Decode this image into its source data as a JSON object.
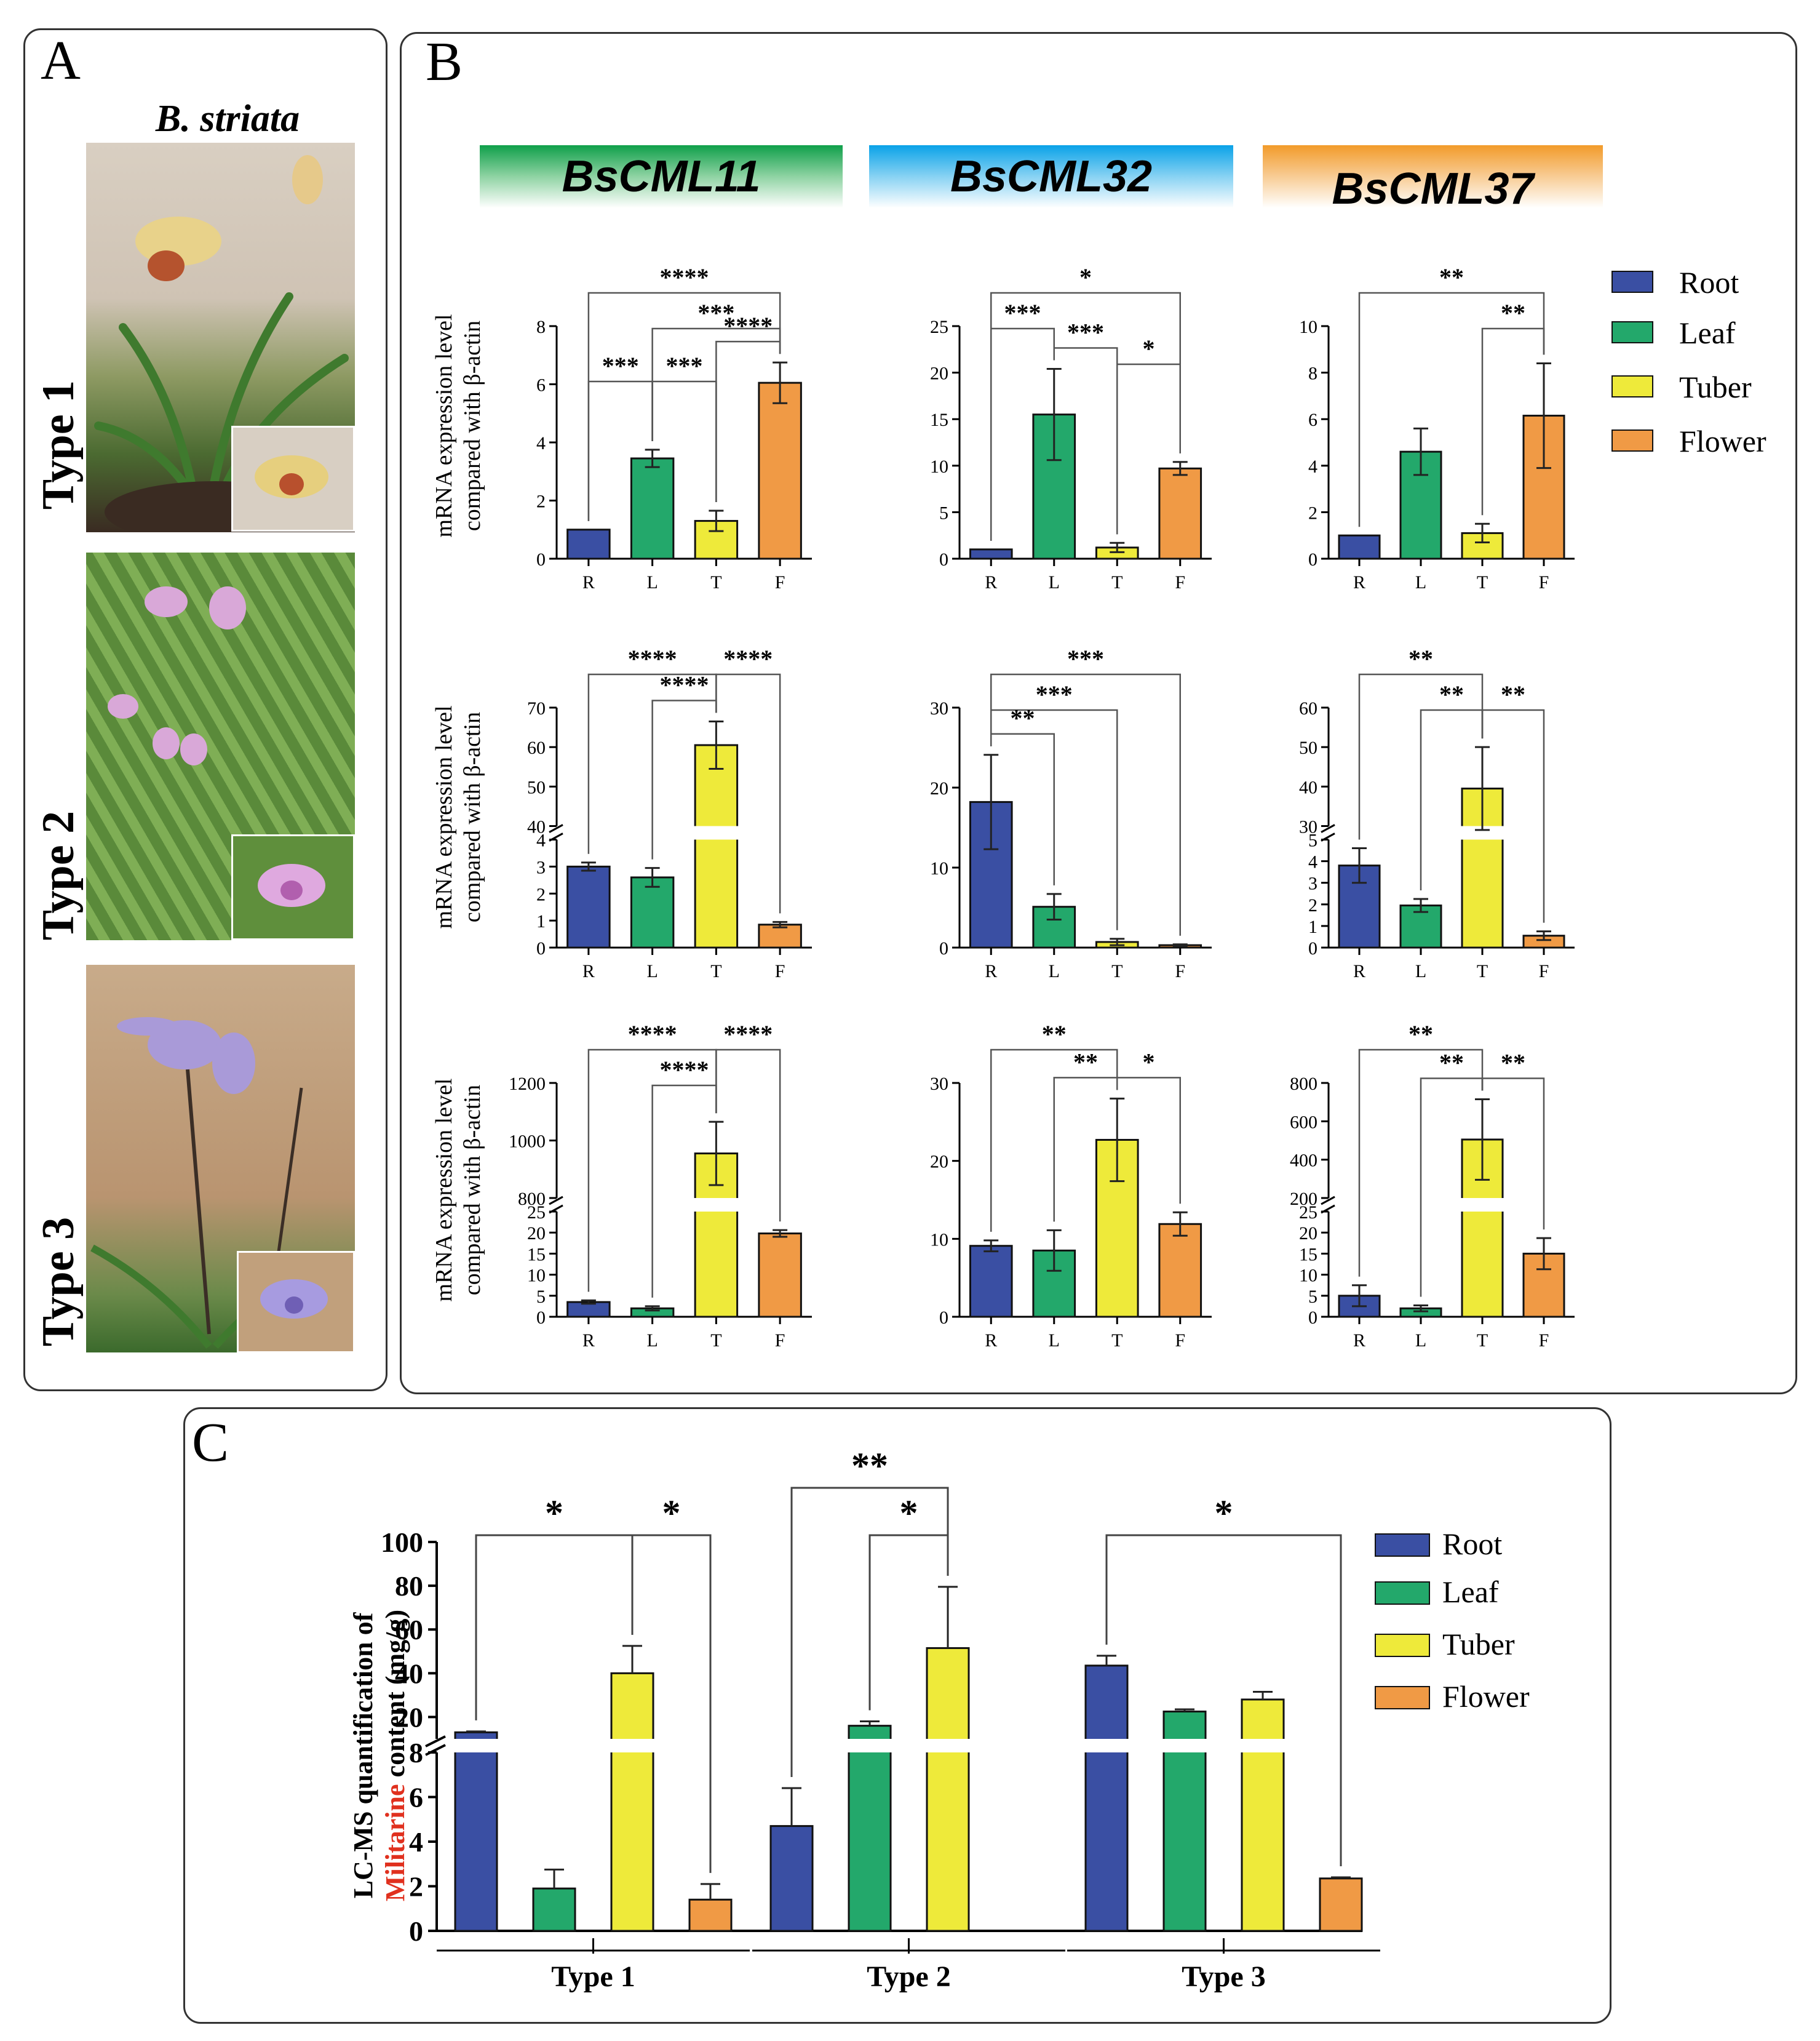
{
  "panels": {
    "a": "A",
    "b": "B",
    "c": "C"
  },
  "species": "B. striata",
  "types": [
    "Type 1",
    "Type 2",
    "Type 3"
  ],
  "genes": [
    {
      "name": "BsCML11",
      "color": "#1aaa55"
    },
    {
      "name": "BsCML32",
      "color": "#1ea7e8"
    },
    {
      "name": "BsCML37",
      "color": "#f39a2c"
    }
  ],
  "ylabel_b": [
    "mRNA expression level",
    "compared with β-actin"
  ],
  "legend": [
    {
      "label": "Root",
      "color": "#3a4fa3"
    },
    {
      "label": "Leaf",
      "color": "#23a86b"
    },
    {
      "label": "Tuber",
      "color": "#eeea3a"
    },
    {
      "label": "Flower",
      "color": "#f09a45"
    }
  ],
  "panel_c": {
    "ylabel_line1": "LC-MS quantification of",
    "ylabel_highlight": "Militarine",
    "ylabel_rest": " content (mg/g)",
    "highlight_color": "#e0301e"
  },
  "chart_data": [
    {
      "id": "b-r1-c1",
      "type": "bar",
      "categories": [
        "R",
        "L",
        "T",
        "F"
      ],
      "values": [
        1,
        3.45,
        1.3,
        6.05
      ],
      "errors": [
        0,
        0.3,
        0.35,
        0.7
      ],
      "ylim": [
        0,
        8
      ],
      "yticks": [
        0,
        2,
        4,
        6,
        8
      ],
      "sig": [
        {
          "a": 0,
          "b": 3,
          "t": "****",
          "lvl": 3
        },
        {
          "a": 1,
          "b": 3,
          "t": "***",
          "lvl": 2
        },
        {
          "a": 2,
          "b": 3,
          "t": "****",
          "lvl": 1
        },
        {
          "a": 0,
          "b": 1,
          "t": "***",
          "lvl": 0
        },
        {
          "a": 1,
          "b": 2,
          "t": "***",
          "lvl": -1
        }
      ]
    },
    {
      "id": "b-r1-c2",
      "type": "bar",
      "categories": [
        "R",
        "L",
        "T",
        "F"
      ],
      "values": [
        1,
        15.5,
        1.2,
        9.7
      ],
      "errors": [
        0,
        4.9,
        0.5,
        0.7
      ],
      "ylim": [
        0,
        25
      ],
      "yticks": [
        0,
        5,
        10,
        15,
        20,
        25
      ],
      "sig": [
        {
          "a": 0,
          "b": 3,
          "t": "*",
          "lvl": 3
        },
        {
          "a": 0,
          "b": 1,
          "t": "***",
          "lvl": 2
        },
        {
          "a": 1,
          "b": 2,
          "t": "***",
          "lvl": 1
        },
        {
          "a": 2,
          "b": 3,
          "t": "*",
          "lvl": 1
        }
      ]
    },
    {
      "id": "b-r1-c3",
      "type": "bar",
      "categories": [
        "R",
        "L",
        "T",
        "F"
      ],
      "values": [
        1,
        4.6,
        1.1,
        6.15
      ],
      "errors": [
        0,
        1.0,
        0.4,
        2.25
      ],
      "ylim": [
        0,
        10
      ],
      "yticks": [
        0,
        2,
        4,
        6,
        8,
        10
      ],
      "sig": [
        {
          "a": 0,
          "b": 3,
          "t": "**",
          "lvl": 3
        },
        {
          "a": 2,
          "b": 3,
          "t": "**",
          "lvl": 2
        }
      ]
    },
    {
      "id": "b-r2-c1",
      "type": "bar",
      "categories": [
        "R",
        "L",
        "T",
        "F"
      ],
      "values": [
        3,
        2.6,
        60.5,
        0.85
      ],
      "errors": [
        0.15,
        0.35,
        6.0,
        0.1
      ],
      "broken": {
        "low": [
          0,
          4
        ],
        "high": [
          40,
          70
        ],
        "lowticks": [
          0,
          1,
          2,
          3,
          4
        ],
        "highticks": [
          40,
          50,
          60,
          70
        ]
      },
      "sig": [
        {
          "a": 0,
          "b": 2,
          "t": "****",
          "lvl": 3
        },
        {
          "a": 2,
          "b": 3,
          "t": "****",
          "lvl": 3
        },
        {
          "a": 1,
          "b": 2,
          "t": "****",
          "lvl": 2
        }
      ]
    },
    {
      "id": "b-r2-c2",
      "type": "bar",
      "categories": [
        "R",
        "L",
        "T",
        "F"
      ],
      "values": [
        18.2,
        5.1,
        0.7,
        0.3
      ],
      "errors": [
        5.9,
        1.6,
        0.4,
        0.1
      ],
      "ylim": [
        0,
        30
      ],
      "yticks": [
        0,
        10,
        20,
        30
      ],
      "sig": [
        {
          "a": 0,
          "b": 3,
          "t": "***",
          "lvl": 3
        },
        {
          "a": 0,
          "b": 2,
          "t": "***",
          "lvl": 2
        },
        {
          "a": 0,
          "b": 1,
          "t": "**",
          "lvl": 1
        }
      ]
    },
    {
      "id": "b-r2-c3",
      "type": "bar",
      "categories": [
        "R",
        "L",
        "T",
        "F"
      ],
      "values": [
        3.8,
        1.95,
        39.5,
        0.55
      ],
      "errors": [
        0.8,
        0.3,
        10.5,
        0.2
      ],
      "broken": {
        "low": [
          0,
          5
        ],
        "high": [
          30,
          60
        ],
        "lowticks": [
          0,
          1,
          2,
          3,
          4,
          5
        ],
        "highticks": [
          30,
          40,
          50,
          60
        ]
      },
      "sig": [
        {
          "a": 0,
          "b": 2,
          "t": "**",
          "lvl": 3
        },
        {
          "a": 1,
          "b": 2,
          "t": "**",
          "lvl": 2
        },
        {
          "a": 2,
          "b": 3,
          "t": "**",
          "lvl": 2
        }
      ]
    },
    {
      "id": "b-r3-c1",
      "type": "bar",
      "categories": [
        "R",
        "L",
        "T",
        "F"
      ],
      "values": [
        3.5,
        2,
        955,
        19.8
      ],
      "errors": [
        0.4,
        0.5,
        110,
        0.8
      ],
      "broken": {
        "low": [
          0,
          25
        ],
        "high": [
          800,
          1200
        ],
        "lowticks": [
          0,
          5,
          10,
          15,
          20,
          25
        ],
        "highticks": [
          800,
          1000,
          1200
        ]
      },
      "sig": [
        {
          "a": 0,
          "b": 2,
          "t": "****",
          "lvl": 3
        },
        {
          "a": 2,
          "b": 3,
          "t": "****",
          "lvl": 3
        },
        {
          "a": 1,
          "b": 2,
          "t": "****",
          "lvl": 2
        }
      ]
    },
    {
      "id": "b-r3-c2",
      "type": "bar",
      "categories": [
        "R",
        "L",
        "T",
        "F"
      ],
      "values": [
        9.1,
        8.5,
        22.7,
        11.9
      ],
      "errors": [
        0.7,
        2.6,
        5.3,
        1.5
      ],
      "ylim": [
        0,
        30
      ],
      "yticks": [
        0,
        10,
        20,
        30
      ],
      "sig": [
        {
          "a": 0,
          "b": 2,
          "t": "**",
          "lvl": 3
        },
        {
          "a": 1,
          "b": 2,
          "t": "**",
          "lvl": 2
        },
        {
          "a": 2,
          "b": 3,
          "t": "*",
          "lvl": 2
        }
      ]
    },
    {
      "id": "b-r3-c3",
      "type": "bar",
      "categories": [
        "R",
        "L",
        "T",
        "F"
      ],
      "values": [
        5,
        2,
        505,
        15
      ],
      "errors": [
        2.5,
        0.7,
        210,
        3.7
      ],
      "broken": {
        "low": [
          0,
          25
        ],
        "high": [
          200,
          800
        ],
        "lowticks": [
          0,
          5,
          10,
          15,
          20,
          25
        ],
        "highticks": [
          200,
          400,
          600,
          800
        ]
      },
      "sig": [
        {
          "a": 0,
          "b": 2,
          "t": "**",
          "lvl": 3
        },
        {
          "a": 1,
          "b": 2,
          "t": "**",
          "lvl": 2
        },
        {
          "a": 2,
          "b": 3,
          "t": "**",
          "lvl": 2
        }
      ]
    },
    {
      "id": "c",
      "type": "bar",
      "groups": [
        "Type 1",
        "Type 2",
        "Type 3"
      ],
      "series": [
        {
          "name": "Root",
          "values": [
            13,
            4.7,
            43.5
          ],
          "errors": [
            0.4,
            1.7,
            4.5
          ]
        },
        {
          "name": "Leaf",
          "values": [
            1.9,
            16,
            22.5
          ],
          "errors": [
            0.85,
            2,
            1
          ]
        },
        {
          "name": "Tuber",
          "values": [
            40,
            51.5,
            28
          ],
          "errors": [
            12.5,
            28,
            3.5
          ]
        },
        {
          "name": "Flower",
          "values": [
            1.4,
            null,
            2.35
          ],
          "errors": [
            0.7,
            null,
            0.05
          ]
        }
      ],
      "broken": {
        "low": [
          0,
          8
        ],
        "high": [
          10,
          100
        ],
        "lowticks": [
          0,
          2,
          4,
          6,
          8
        ],
        "highticks": [
          20,
          40,
          60,
          80,
          100
        ]
      },
      "sig": [
        {
          "g1": 0,
          "s1": 0,
          "g2": 0,
          "s2": 2,
          "t": "*",
          "lvl": 1
        },
        {
          "g1": 0,
          "s1": 2,
          "g2": 0,
          "s2": 3,
          "t": "*",
          "lvl": 1
        },
        {
          "g1": 1,
          "s1": 0,
          "g2": 1,
          "s2": 2,
          "t": "**",
          "lvl": 2
        },
        {
          "g1": 1,
          "s1": 1,
          "g2": 1,
          "s2": 2,
          "t": "*",
          "lvl": 1
        },
        {
          "g1": 2,
          "s1": 0,
          "g2": 2,
          "s2": 3,
          "t": "*",
          "lvl": 1
        }
      ]
    }
  ]
}
